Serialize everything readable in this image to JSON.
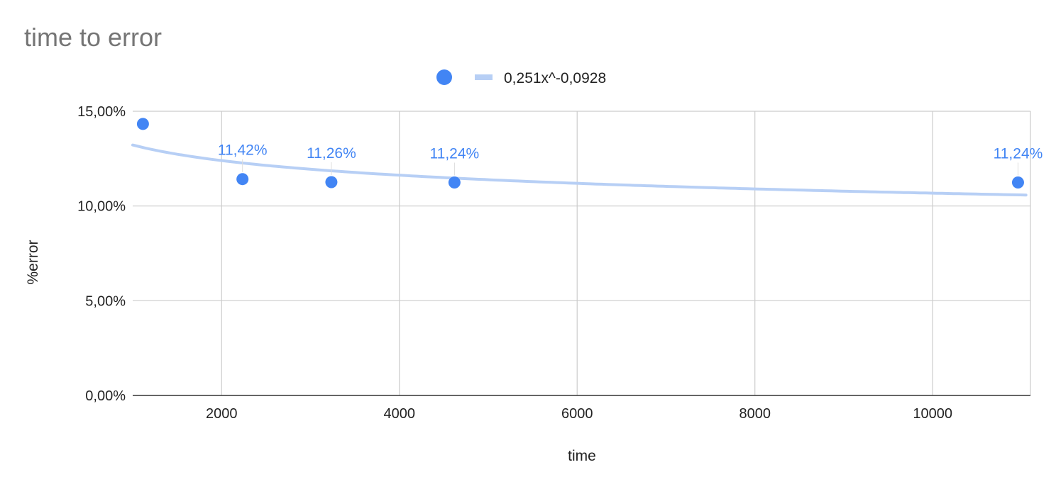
{
  "chart_data": {
    "type": "scatter",
    "title": "time to error",
    "xlabel": "time",
    "ylabel": "%error",
    "xlim": [
      1000,
      11100
    ],
    "ylim": [
      0,
      0.15
    ],
    "x_ticks": [
      2000,
      4000,
      6000,
      8000,
      10000
    ],
    "x_tick_labels": [
      "2000",
      "4000",
      "6000",
      "8000",
      "10000"
    ],
    "y_ticks": [
      0,
      0.05,
      0.1,
      0.15
    ],
    "y_tick_labels": [
      "0,00%",
      "5,00%",
      "10,00%",
      "15,00%"
    ],
    "grid": true,
    "legend_position": "top",
    "series": [
      {
        "color": "#4285f4",
        "points": [
          {
            "x": 1115,
            "y": 0.1433,
            "label": ""
          },
          {
            "x": 2235,
            "y": 0.1142,
            "label": "11,42%"
          },
          {
            "x": 3235,
            "y": 0.1126,
            "label": "11,26%"
          },
          {
            "x": 4620,
            "y": 0.1124,
            "label": "11,24%"
          },
          {
            "x": 10960,
            "y": 0.1124,
            "label": "11,24%"
          }
        ]
      }
    ],
    "trendline": {
      "type": "power",
      "coefficient": 0.251,
      "exponent": -0.0928,
      "color": "#b7cff5",
      "label": "0,251x^-0,0928",
      "x_range": [
        1000,
        11050
      ]
    }
  }
}
